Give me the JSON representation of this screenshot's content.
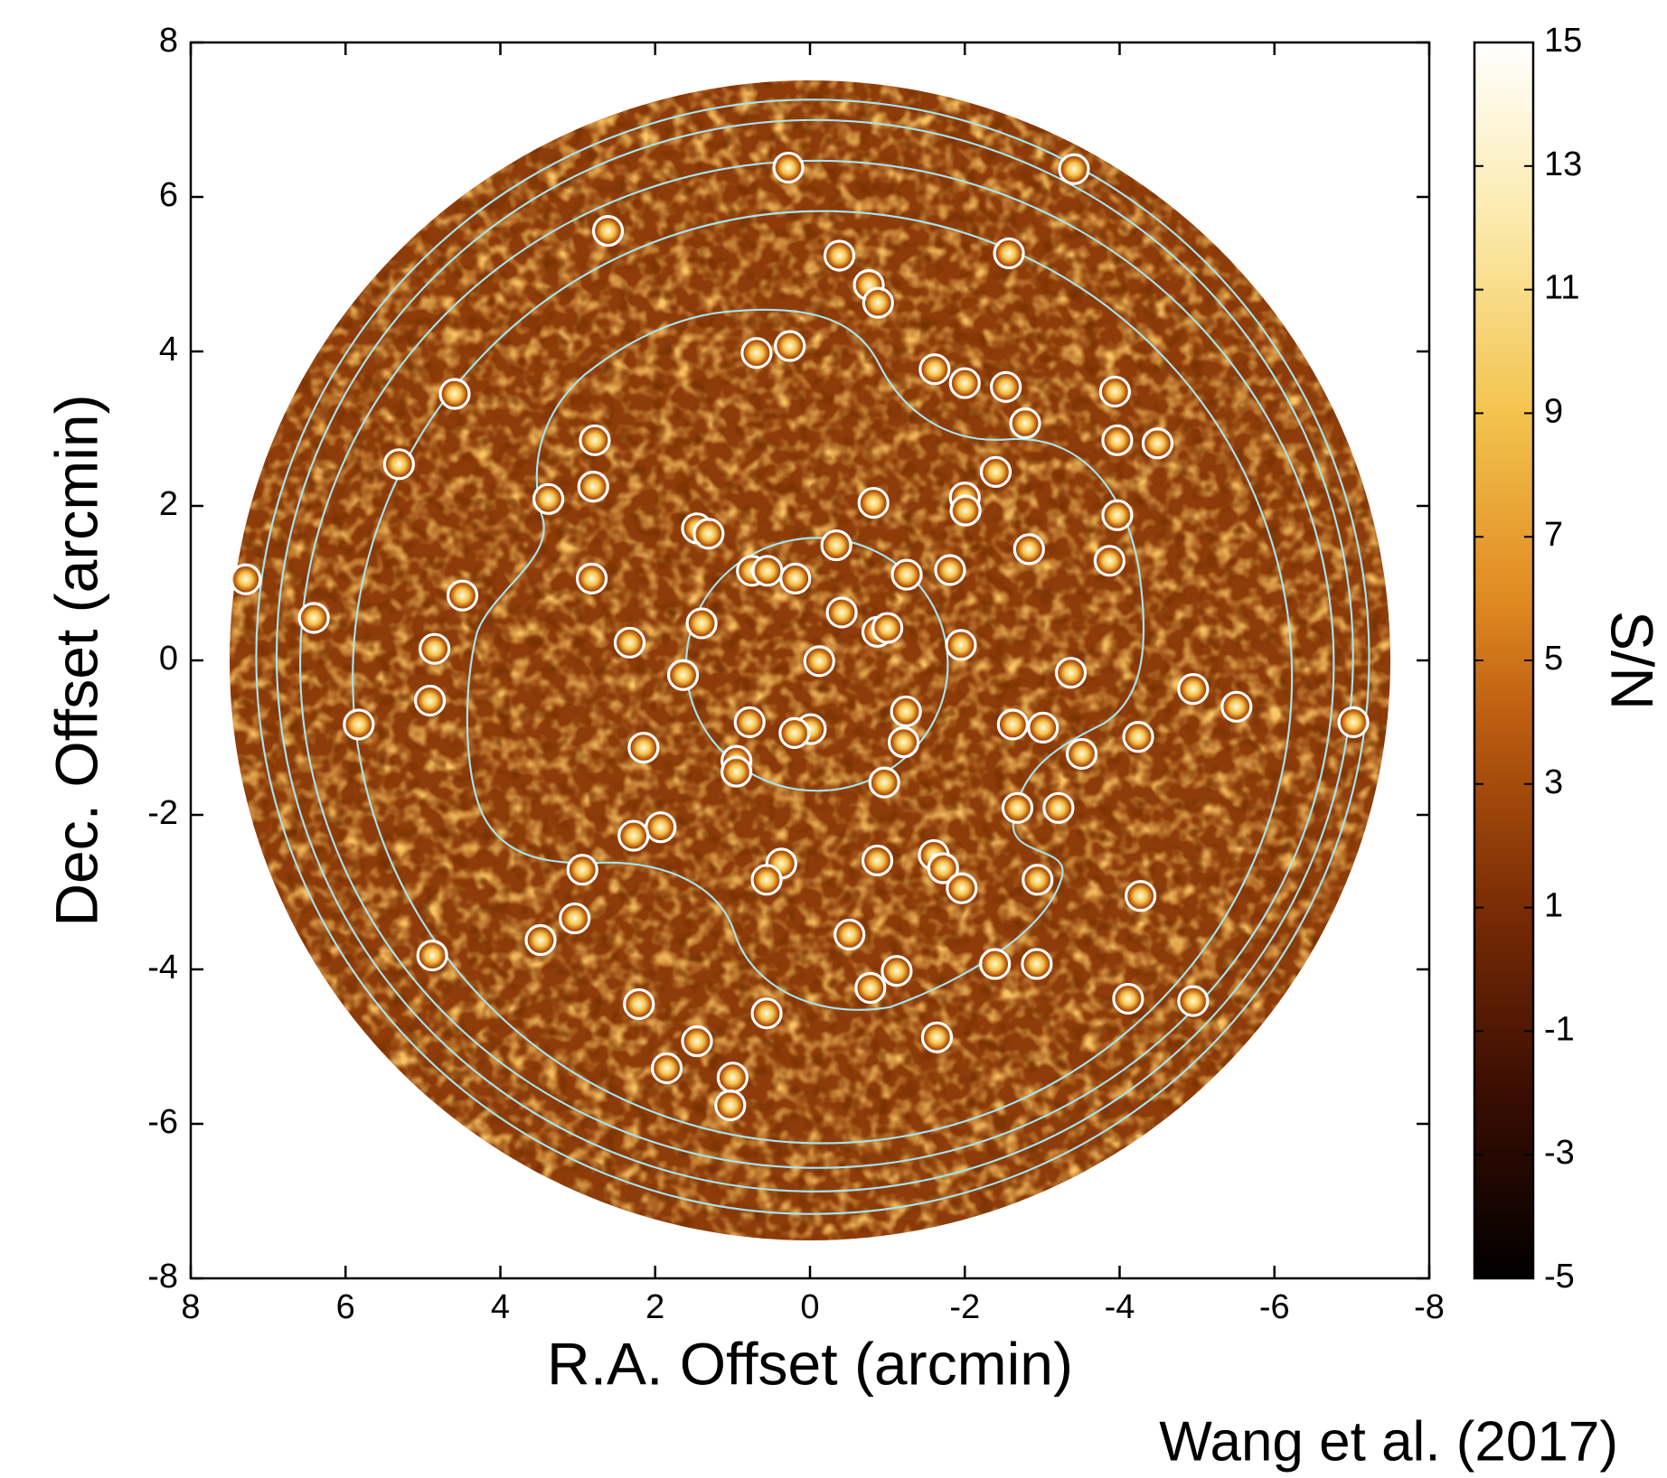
{
  "chart_data": {
    "type": "scatter",
    "xlabel": "R.A. Offset (arcmin)",
    "ylabel": "Dec. Offset (arcmin)",
    "annotation": "Wang et al. (2017)",
    "xlim": [
      8,
      -8
    ],
    "ylim": [
      -8,
      8
    ],
    "xticks": [
      8,
      6,
      4,
      2,
      0,
      -2,
      -4,
      -6,
      -8
    ],
    "yticks": [
      -8,
      -6,
      -4,
      -2,
      0,
      2,
      4,
      6,
      8
    ],
    "colorbar": {
      "label": "S/N",
      "lim": [
        -5,
        15
      ],
      "ticks": [
        -5,
        -3,
        -1,
        1,
        3,
        5,
        7,
        9,
        11,
        13,
        15
      ]
    },
    "color": "#ffffff",
    "x": [
      0.28,
      -3.41,
      2.61,
      -0.38,
      -2.57,
      -0.76,
      -0.88,
      0.69,
      0.26,
      -1.61,
      -2.0,
      -2.53,
      4.59,
      -3.94,
      -2.78,
      2.78,
      -3.97,
      -4.49,
      5.31,
      -2.4,
      3.38,
      2.8,
      -0.82,
      -2.0,
      -2.01,
      -3.97,
      1.46,
      1.31,
      -0.34,
      -2.83,
      7.29,
      -3.87,
      0.75,
      0.55,
      2.82,
      0.19,
      -1.25,
      -1.81,
      4.49,
      6.41,
      -0.41,
      -0.87,
      -1.0,
      1.4,
      2.33,
      -1.95,
      4.85,
      -0.12,
      1.64,
      -3.37,
      -4.95,
      -5.51,
      4.91,
      5.83,
      -1.24,
      0.78,
      -2.62,
      -3.01,
      -7.02,
      -0.01,
      0.2,
      -4.24,
      2.15,
      -1.21,
      -3.51,
      0.95,
      0.95,
      -0.96,
      -2.68,
      -3.21,
      1.93,
      2.28,
      -1.6,
      -0.87,
      -1.72,
      0.37,
      0.56,
      2.94,
      -1.96,
      -2.94,
      -4.27,
      3.04,
      3.48,
      -0.51,
      4.88,
      -2.39,
      -2.93,
      -1.12,
      -0.78,
      2.21,
      0.56,
      -4.11,
      -4.95,
      1.46,
      -1.64,
      1.85,
      1.0,
      1.03
    ],
    "y": [
      6.38,
      6.36,
      5.56,
      5.24,
      5.27,
      4.86,
      4.63,
      3.98,
      4.07,
      3.77,
      3.59,
      3.54,
      3.45,
      3.48,
      3.07,
      2.85,
      2.85,
      2.81,
      2.54,
      2.44,
      2.09,
      2.25,
      2.04,
      2.11,
      1.94,
      1.88,
      1.71,
      1.64,
      1.49,
      1.44,
      1.05,
      1.29,
      1.16,
      1.16,
      1.06,
      1.06,
      1.11,
      1.17,
      0.84,
      0.55,
      0.62,
      0.37,
      0.42,
      0.48,
      0.23,
      0.2,
      0.15,
      -0.01,
      -0.19,
      -0.16,
      -0.37,
      -0.6,
      -0.52,
      -0.83,
      -0.66,
      -0.8,
      -0.83,
      -0.87,
      -0.8,
      -0.89,
      -0.94,
      -0.99,
      -1.13,
      -1.06,
      -1.21,
      -1.3,
      -1.44,
      -1.58,
      -1.91,
      -1.91,
      -2.16,
      -2.27,
      -2.52,
      -2.59,
      -2.69,
      -2.63,
      -2.84,
      -2.71,
      -2.95,
      -2.84,
      -3.05,
      -3.34,
      -3.62,
      -3.55,
      -3.82,
      -3.93,
      -3.93,
      -4.02,
      -4.24,
      -4.45,
      -4.57,
      -4.38,
      -4.41,
      -4.93,
      -4.88,
      -5.28,
      -5.4,
      -5.76
    ]
  }
}
